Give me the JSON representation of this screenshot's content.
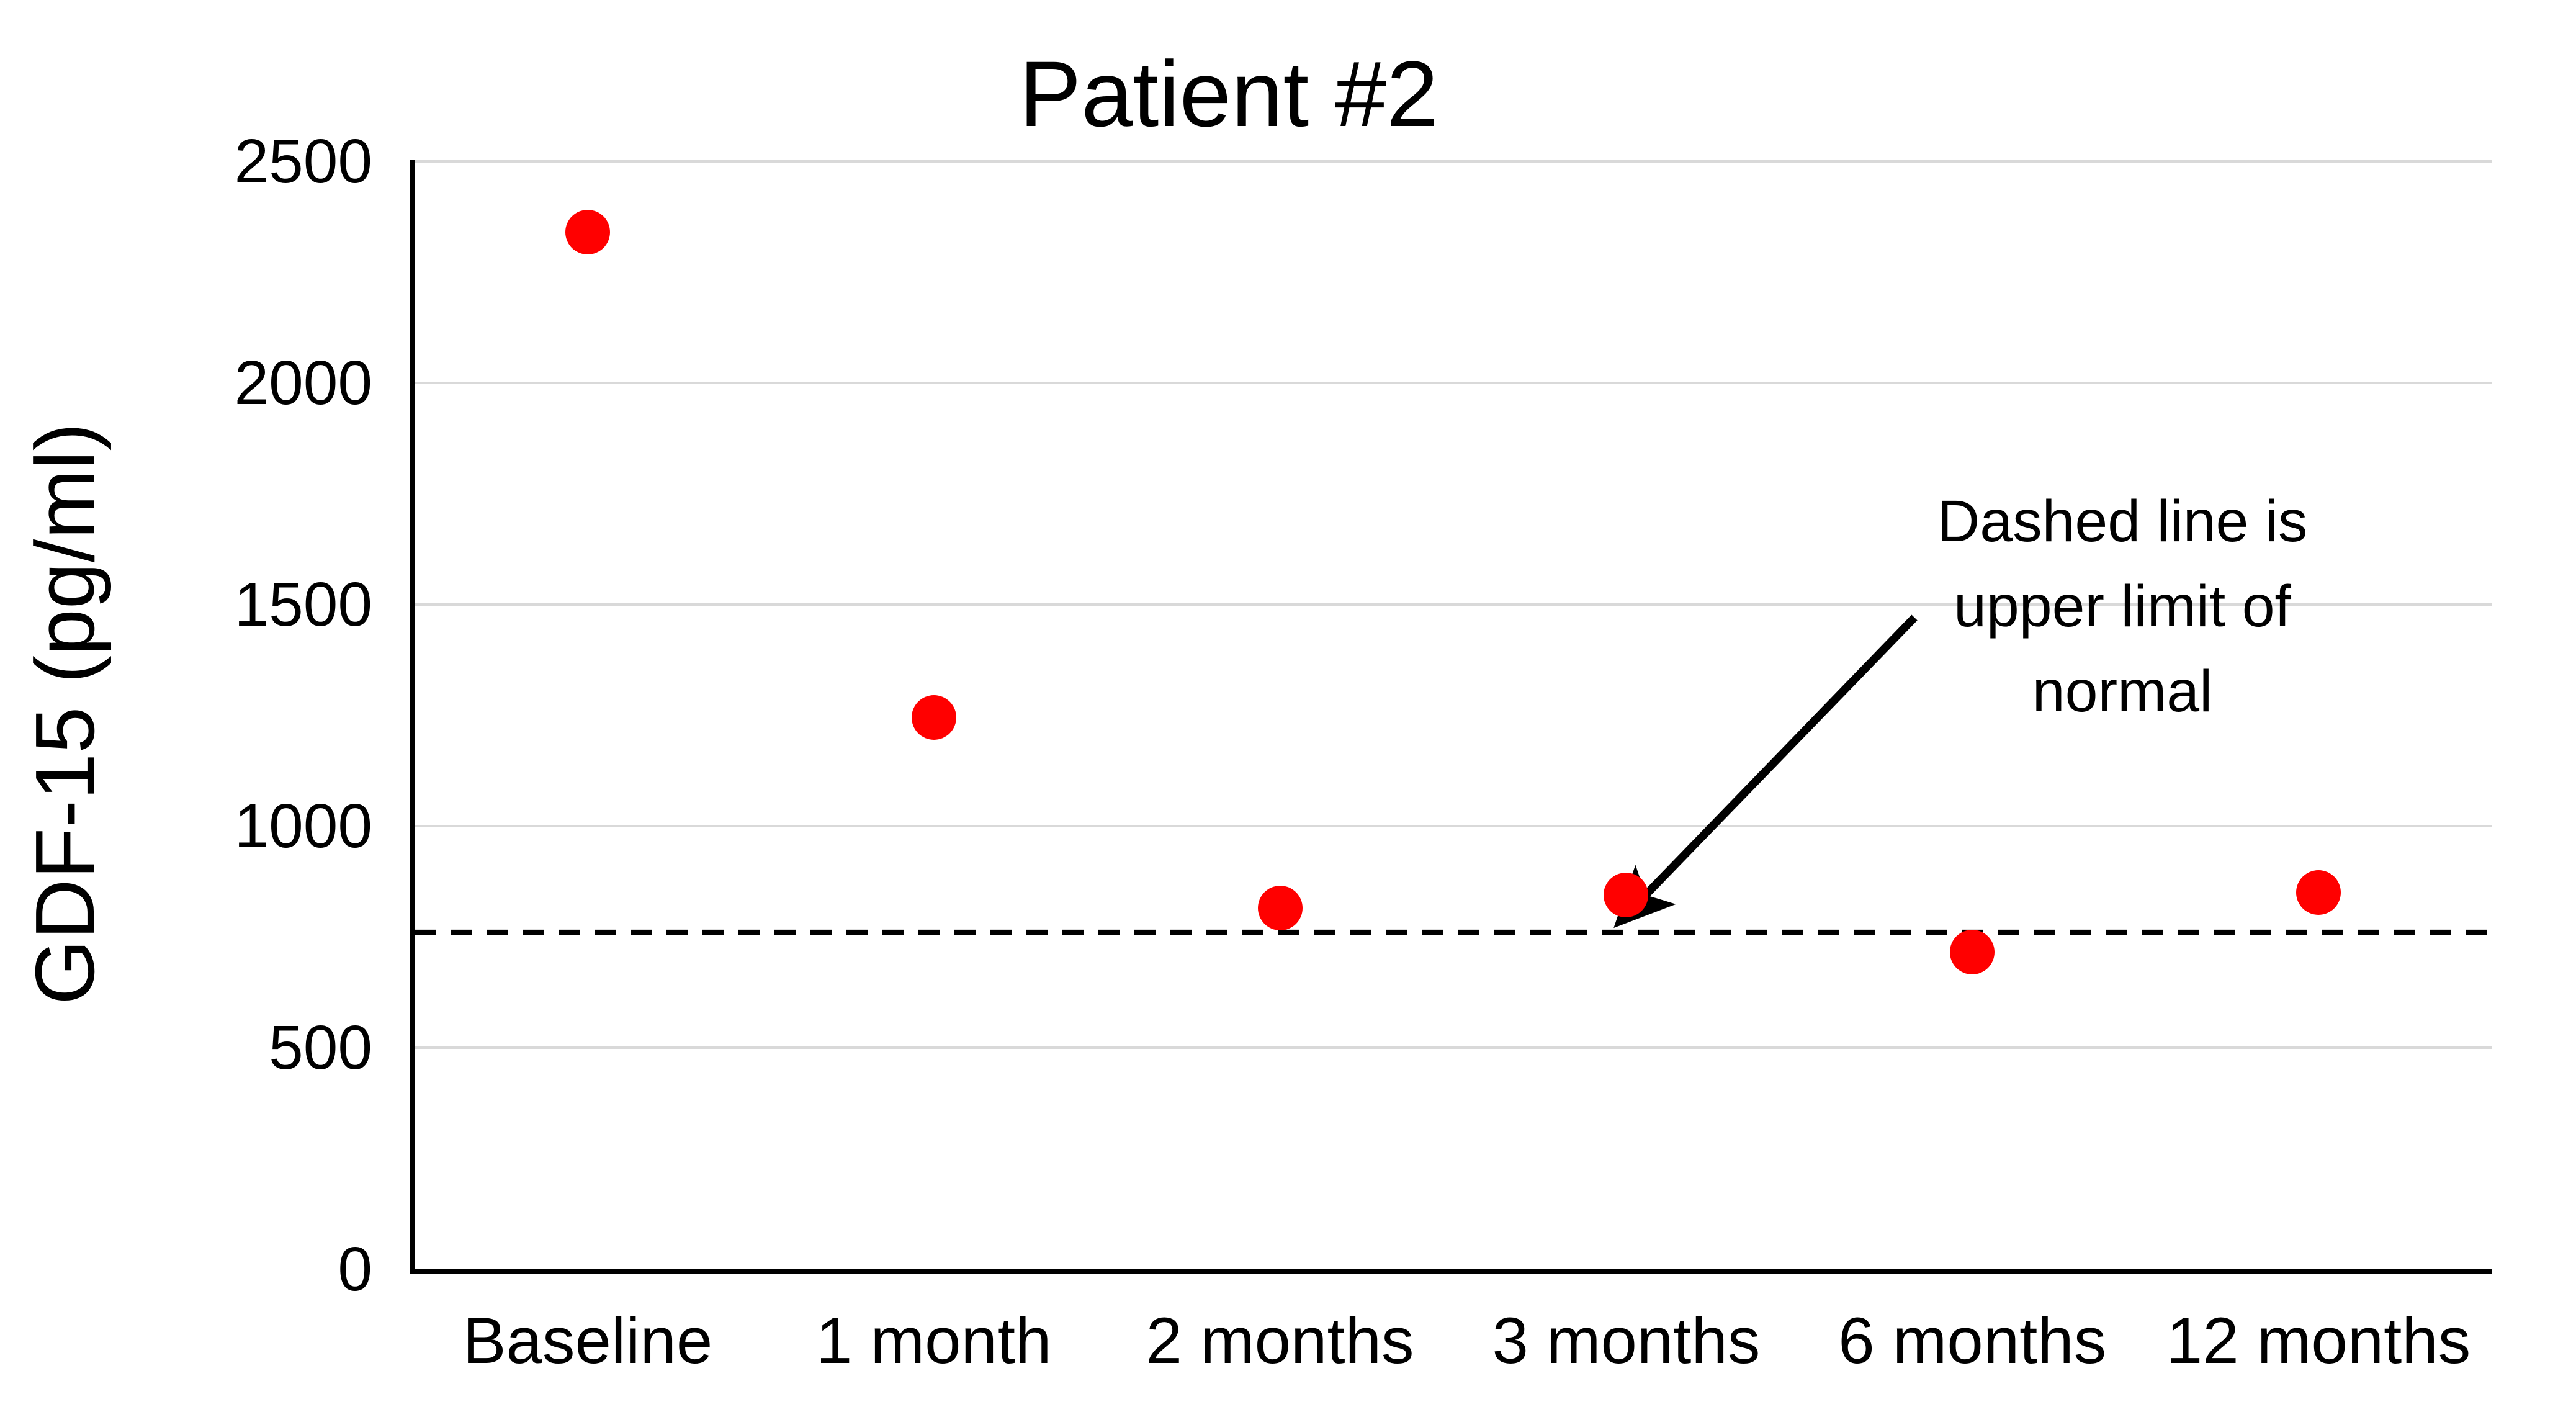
{
  "chart_data": {
    "type": "scatter",
    "title": "Patient #2",
    "xlabel": "",
    "ylabel": "GDF-15 (pg/ml)",
    "categories": [
      "Baseline",
      "1 month",
      "2 months",
      "3 months",
      "6 months",
      "12 months"
    ],
    "series": [
      {
        "name": "GDF-15",
        "values": [
          2340,
          1245,
          815,
          845,
          715,
          850
        ]
      }
    ],
    "ylim": [
      0,
      2500
    ],
    "yticks": [
      0,
      500,
      1000,
      1500,
      2000,
      2500
    ],
    "grid": "horizontal-only",
    "legend_position": "none",
    "reference_line": {
      "value": 760,
      "style": "dashed",
      "color": "#000000",
      "meaning": "upper limit of normal"
    },
    "annotation": {
      "lines": [
        "Dashed line is",
        "upper limit of",
        "normal"
      ],
      "arrow_target": "dashed reference line near 3 months"
    },
    "colors": {
      "marker": "#ff0000",
      "gridline": "#d9d9d9",
      "axis": "#000000",
      "text": "#000000",
      "background": "#ffffff"
    }
  }
}
